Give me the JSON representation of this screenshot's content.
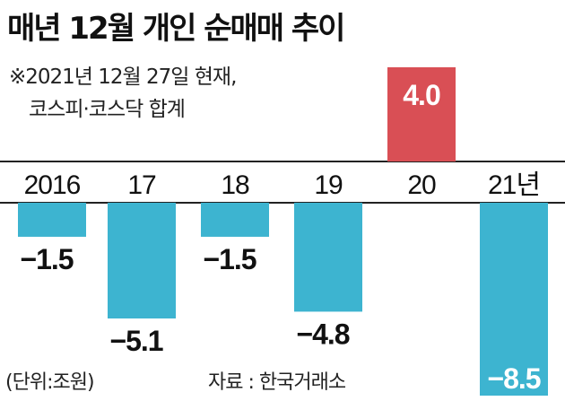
{
  "title": "매년 12월 개인 순매매 추이",
  "note": {
    "line1": "※2021년 12월 27일 현재,",
    "line2": "코스피·코스닥 합계"
  },
  "footer": {
    "unit": "(단위:조원)",
    "source": "자료 : 한국거래소"
  },
  "chart_data": {
    "type": "bar",
    "categories": [
      "2016",
      "17",
      "18",
      "19",
      "20",
      "21년"
    ],
    "values": [
      -1.5,
      -5.1,
      -1.5,
      -4.8,
      4.0,
      -8.5
    ],
    "value_labels": [
      "−1.5",
      "−5.1",
      "−1.5",
      "−4.8",
      "4.0",
      "−8.5"
    ],
    "title": "매년 12월 개인 순매매 추이",
    "xlabel": "",
    "ylabel": "",
    "ylim": [
      -8.5,
      4.0
    ],
    "grid": false,
    "colors": {
      "negative": "#3db4d0",
      "positive": "#d94f55",
      "axis": "#222222"
    }
  }
}
